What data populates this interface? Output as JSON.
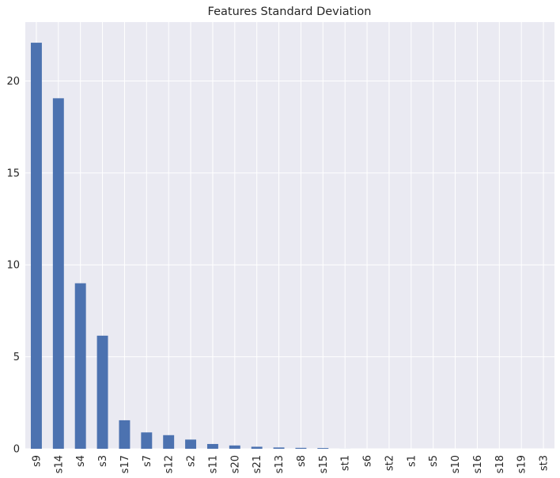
{
  "chart_data": {
    "type": "bar",
    "title": "Features Standard Deviation",
    "xlabel": "",
    "ylabel": "",
    "categories": [
      "s9",
      "s14",
      "s4",
      "s3",
      "s17",
      "s7",
      "s12",
      "s2",
      "s11",
      "s20",
      "s21",
      "s13",
      "s8",
      "s15",
      "st1",
      "s6",
      "st2",
      "s1",
      "s5",
      "s10",
      "s16",
      "s18",
      "s19",
      "st3"
    ],
    "values": [
      22.08,
      19.06,
      9.0,
      6.15,
      1.55,
      0.89,
      0.74,
      0.5,
      0.26,
      0.18,
      0.11,
      0.07,
      0.05,
      0.04,
      0.002,
      0.0,
      0.0,
      0.0,
      0.0,
      0.0,
      0.0,
      0.0,
      0.0,
      0.0
    ],
    "ylim": [
      0,
      23.2
    ],
    "yticks": [
      0,
      5,
      10,
      15,
      20
    ],
    "grid": true,
    "colors": {
      "bar": "#4c72b0",
      "plot_background": "#eaeaf2",
      "grid": "#ffffff",
      "text": "#262626"
    }
  }
}
